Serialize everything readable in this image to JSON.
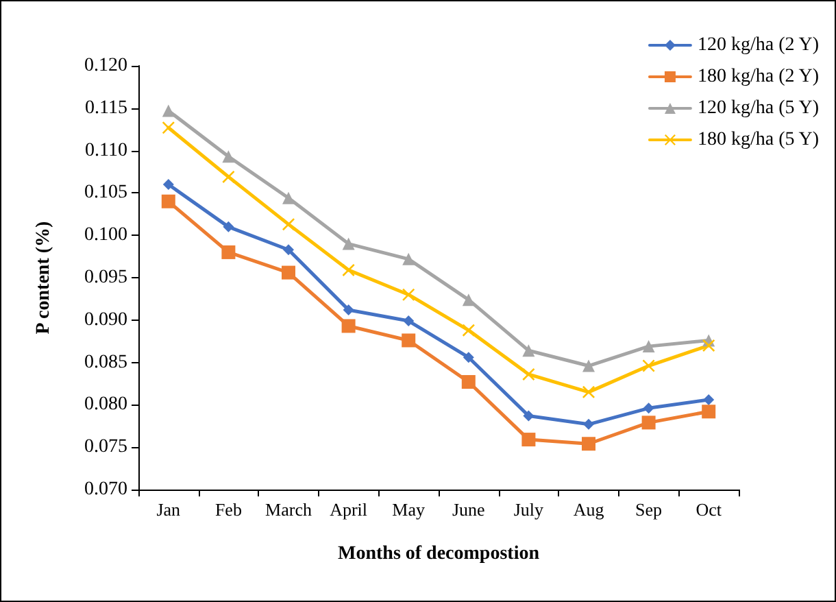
{
  "chart_data": {
    "type": "line",
    "xlabel": "Months of decompostion",
    "ylabel": "P content (%)",
    "categories": [
      "Jan",
      "Feb",
      "March",
      "April",
      "May",
      "June",
      "July",
      "Aug",
      "Sep",
      "Oct"
    ],
    "series": [
      {
        "name": "120 kg/ha (2 Y)",
        "color": "#4472c4",
        "marker": "diamond",
        "values": [
          0.106,
          0.101,
          0.0983,
          0.0912,
          0.0899,
          0.0856,
          0.0787,
          0.0777,
          0.0796,
          0.0806
        ]
      },
      {
        "name": "180 kg/ha (2 Y)",
        "color": "#ed7d31",
        "marker": "square",
        "values": [
          0.104,
          0.098,
          0.0956,
          0.0893,
          0.0876,
          0.0827,
          0.0759,
          0.0754,
          0.0779,
          0.0792
        ]
      },
      {
        "name": "120 kg/ha (5 Y)",
        "color": "#a5a5a5",
        "marker": "triangle",
        "values": [
          0.1147,
          0.1093,
          0.1044,
          0.099,
          0.0972,
          0.0924,
          0.0864,
          0.0846,
          0.0869,
          0.0876
        ]
      },
      {
        "name": "180 kg/ha (5 Y)",
        "color": "#ffc000",
        "marker": "cross",
        "values": [
          0.1127,
          0.1069,
          0.1013,
          0.0959,
          0.093,
          0.0888,
          0.0836,
          0.0815,
          0.0846,
          0.087
        ]
      }
    ],
    "ylim": [
      0.07,
      0.12
    ],
    "yticks": [
      {
        "value": 0.07,
        "label": "0.070"
      },
      {
        "value": 0.075,
        "label": "0.075"
      },
      {
        "value": 0.08,
        "label": "0.080"
      },
      {
        "value": 0.085,
        "label": "0.085"
      },
      {
        "value": 0.09,
        "label": "0.090"
      },
      {
        "value": 0.095,
        "label": "0.095"
      },
      {
        "value": 0.1,
        "label": "0.100"
      },
      {
        "value": 0.105,
        "label": "0.105"
      },
      {
        "value": 0.11,
        "label": "0.110"
      },
      {
        "value": 0.115,
        "label": "0.115"
      },
      {
        "value": 0.12,
        "label": "0.120"
      }
    ],
    "grid": false,
    "legend": "top right",
    "line_style": "solid"
  }
}
